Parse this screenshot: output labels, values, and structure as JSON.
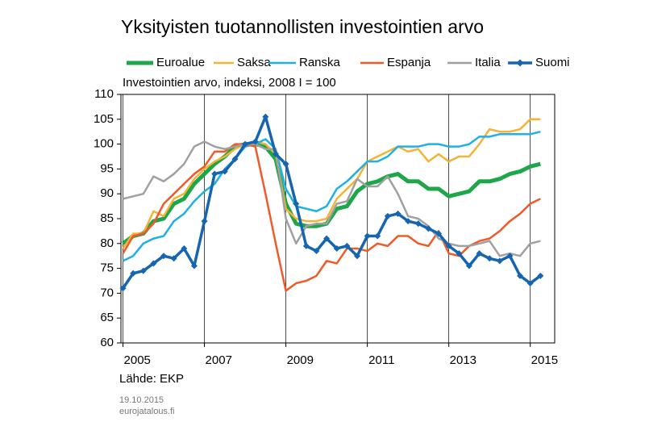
{
  "chart_data": {
    "type": "line",
    "title": "Yksityisten tuotannollisten investointien arvo",
    "subtitle": "Investointien arvo, indeksi, 2008 I = 100",
    "source": "Lähde: EKP",
    "date": "19.10.2015",
    "site": "eurojatalous.fi",
    "x": [
      2005,
      2005.25,
      2005.5,
      2005.75,
      2006,
      2006.25,
      2006.5,
      2006.75,
      2007,
      2007.25,
      2007.5,
      2007.75,
      2008,
      2008.25,
      2008.5,
      2008.75,
      2009,
      2009.25,
      2009.5,
      2009.75,
      2010,
      2010.25,
      2010.5,
      2010.75,
      2011,
      2011.25,
      2011.5,
      2011.75,
      2012,
      2012.25,
      2012.5,
      2012.75,
      2013,
      2013.25,
      2013.5,
      2013.75,
      2014,
      2014.25,
      2014.5,
      2014.75,
      2015,
      2015.25
    ],
    "xlim": [
      2004.95,
      2015.6
    ],
    "xticks": [
      2005,
      2007,
      2009,
      2011,
      2013,
      2015
    ],
    "ylim": [
      60,
      110
    ],
    "yticks": [
      60,
      65,
      70,
      75,
      80,
      85,
      90,
      95,
      100,
      105,
      110
    ],
    "grid": "x",
    "series": [
      {
        "name": "Euroalue",
        "color": "#1ea64a",
        "width": 5,
        "values": [
          80,
          81.5,
          82,
          84.5,
          85,
          88,
          89,
          92,
          94,
          96,
          97.5,
          99.5,
          100,
          100,
          99.5,
          97,
          88,
          84,
          83.5,
          83.5,
          84,
          87,
          87.5,
          90.5,
          92,
          92.5,
          93.5,
          94,
          92.5,
          92.5,
          91,
          91,
          89.5,
          90,
          90.5,
          92.5,
          92.5,
          93,
          94,
          94.5,
          95.5,
          96
        ]
      },
      {
        "name": "Saksa",
        "color": "#f5b335",
        "width": 2.5,
        "values": [
          79,
          82,
          82,
          86.5,
          85.5,
          89,
          90,
          93,
          95,
          96.5,
          97.5,
          99,
          100,
          100.5,
          100,
          98,
          87,
          85,
          84.5,
          84.5,
          85,
          89,
          91,
          93,
          96.5,
          97.5,
          98.5,
          99.5,
          98.5,
          99,
          96.5,
          98,
          96.5,
          97.5,
          97.5,
          100,
          103,
          102.5,
          102.5,
          103,
          105,
          105
        ]
      },
      {
        "name": "Ranska",
        "color": "#1fb0e6",
        "width": 2.5,
        "values": [
          76.5,
          77.5,
          80,
          81,
          81.5,
          84.5,
          86,
          88.5,
          90.5,
          92,
          95,
          97,
          99.5,
          100,
          101,
          99,
          91,
          87.5,
          87,
          86.5,
          87.5,
          91,
          92.5,
          94.5,
          96.5,
          96.5,
          97.5,
          99.5,
          99.5,
          99.5,
          100,
          100,
          99.5,
          99.5,
          100,
          101.5,
          101.5,
          102,
          102,
          102,
          102,
          102.5
        ]
      },
      {
        "name": "Espanja",
        "color": "#f05a28",
        "width": 2.5,
        "values": [
          78,
          81.5,
          82,
          84,
          88,
          90,
          92,
          94,
          95.5,
          98.5,
          98.5,
          100,
          100,
          99.5,
          90,
          80,
          70.5,
          72,
          72.5,
          73.5,
          76.5,
          76,
          79,
          79,
          78.5,
          80,
          79.5,
          81.5,
          81.5,
          80,
          79.5,
          82.5,
          78,
          77.5,
          79.5,
          80.5,
          81,
          82.5,
          84.5,
          86,
          88,
          89
        ]
      },
      {
        "name": "Italia",
        "color": "#a0a0a0",
        "width": 2.5,
        "values": [
          89,
          89.5,
          90,
          93.5,
          92.5,
          94,
          96,
          99.5,
          100.5,
          99.5,
          99,
          99.5,
          100,
          100,
          99,
          99,
          85,
          80,
          83.5,
          84,
          84,
          88,
          88.5,
          93,
          91.5,
          91.5,
          93.5,
          90,
          85.5,
          85,
          83.5,
          81,
          80,
          79.5,
          79.5,
          80,
          80.5,
          77.5,
          78,
          77.5,
          80,
          80.5
        ]
      },
      {
        "name": "Suomi",
        "color": "#1565b0",
        "width": 3.5,
        "marker": "diamond",
        "values": [
          71,
          74,
          74.5,
          76,
          77.5,
          77,
          79,
          75.5,
          84.5,
          94,
          94.5,
          97,
          100,
          100.5,
          105.5,
          98,
          96,
          88,
          79.5,
          78.5,
          81,
          79,
          79.5,
          77.5,
          81.5,
          81.5,
          85.5,
          86,
          84.5,
          84,
          83,
          82,
          79.5,
          78,
          75.5,
          78,
          77,
          76.5,
          77.5,
          73.5,
          72,
          73.5
        ]
      }
    ]
  }
}
